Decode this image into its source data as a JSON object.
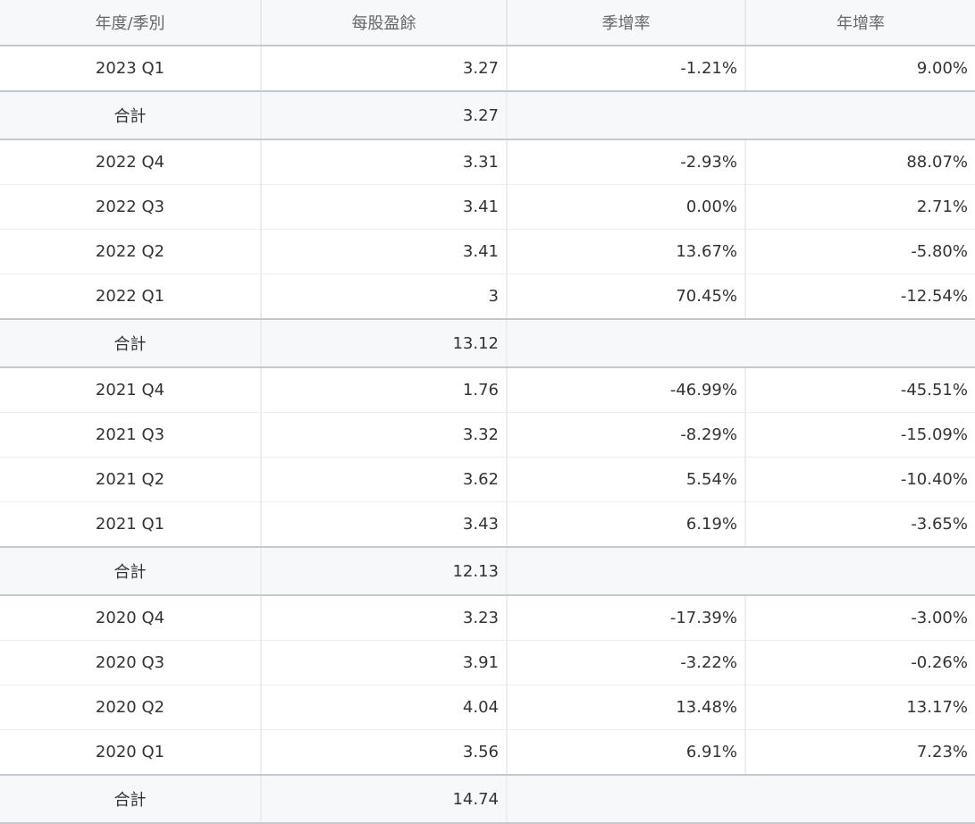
{
  "table": {
    "header": [
      "年度/季別",
      "每股盈餘",
      "季增率",
      "年增率"
    ],
    "rows": [
      [
        "2023 Q1",
        "3.27",
        "-1.21%",
        "9.00%"
      ],
      [
        "合計",
        "3.27"
      ],
      [
        "2022 Q4",
        "3.31",
        "-2.93%",
        "88.07%"
      ],
      [
        "2022 Q3",
        "3.41",
        "0.00%",
        "2.71%"
      ],
      [
        "2022 Q2",
        "3.41",
        "13.67%",
        "-5.80%"
      ],
      [
        "2022 Q1",
        "3",
        "70.45%",
        "-12.54%"
      ],
      [
        "合計",
        "13.12"
      ],
      [
        "2021 Q4",
        "1.76",
        "-46.99%",
        "-45.51%"
      ],
      [
        "2021 Q3",
        "3.32",
        "-8.29%",
        "-15.09%"
      ],
      [
        "2021 Q2",
        "3.62",
        "5.54%",
        "-10.40%"
      ],
      [
        "2021 Q1",
        "3.43",
        "6.19%",
        "-3.65%"
      ],
      [
        "合計",
        "12.13"
      ],
      [
        "2020 Q4",
        "3.23",
        "-17.39%",
        "-3.00%"
      ],
      [
        "2020 Q3",
        "3.91",
        "-3.22%",
        "-0.26%"
      ],
      [
        "2020 Q2",
        "4.04",
        "13.48%",
        "13.17%"
      ],
      [
        "2020 Q1",
        "3.56",
        "6.91%",
        "7.23%"
      ],
      [
        "合計",
        "14.74"
      ]
    ]
  }
}
